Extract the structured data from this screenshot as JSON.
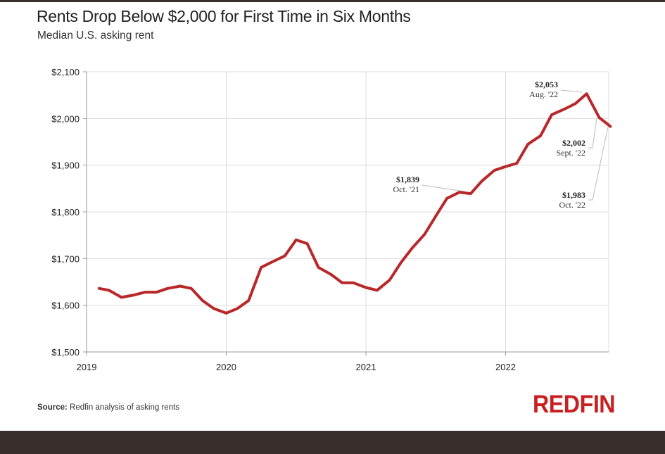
{
  "chart_data": {
    "type": "line",
    "title": "Rents Drop Below $2,000 for First Time in Six Months",
    "subtitle": "Median U.S. asking rent",
    "xlabel": "",
    "ylabel": "",
    "xlim": [
      2019,
      2022.75
    ],
    "ylim": [
      1500,
      2100
    ],
    "x_ticks": [
      {
        "value": 2019,
        "label": "2019"
      },
      {
        "value": 2020,
        "label": "2020"
      },
      {
        "value": 2021,
        "label": "2021"
      },
      {
        "value": 2022,
        "label": "2022"
      }
    ],
    "y_ticks": [
      {
        "value": 1500,
        "label": "$1,500"
      },
      {
        "value": 1600,
        "label": "$1,600"
      },
      {
        "value": 1700,
        "label": "$1,700"
      },
      {
        "value": 1800,
        "label": "$1,800"
      },
      {
        "value": 1900,
        "label": "$1,900"
      },
      {
        "value": 2000,
        "label": "$2,000"
      },
      {
        "value": 2100,
        "label": "$2,100"
      }
    ],
    "grid": true,
    "series": [
      {
        "name": "Median U.S. asking rent",
        "color": "#b8282a",
        "points": [
          [
            2019.09,
            1636
          ],
          [
            2019.16,
            1632
          ],
          [
            2019.25,
            1617
          ],
          [
            2019.34,
            1622
          ],
          [
            2019.42,
            1628
          ],
          [
            2019.5,
            1628
          ],
          [
            2019.58,
            1636
          ],
          [
            2019.67,
            1641
          ],
          [
            2019.75,
            1636
          ],
          [
            2019.83,
            1610
          ],
          [
            2019.91,
            1593
          ],
          [
            2020.0,
            1583
          ],
          [
            2020.08,
            1593
          ],
          [
            2020.16,
            1610
          ],
          [
            2020.25,
            1681
          ],
          [
            2020.33,
            1693
          ],
          [
            2020.42,
            1706
          ],
          [
            2020.5,
            1740
          ],
          [
            2020.58,
            1732
          ],
          [
            2020.66,
            1681
          ],
          [
            2020.75,
            1666
          ],
          [
            2020.83,
            1648
          ],
          [
            2020.91,
            1648
          ],
          [
            2021.0,
            1638
          ],
          [
            2021.08,
            1632
          ],
          [
            2021.17,
            1654
          ],
          [
            2021.25,
            1691
          ],
          [
            2021.33,
            1722
          ],
          [
            2021.42,
            1752
          ],
          [
            2021.5,
            1791
          ],
          [
            2021.58,
            1829
          ],
          [
            2021.67,
            1842
          ],
          [
            2021.75,
            1839
          ],
          [
            2021.83,
            1866
          ],
          [
            2021.92,
            1889
          ],
          [
            2022.0,
            1897
          ],
          [
            2022.08,
            1904
          ],
          [
            2022.16,
            1945
          ],
          [
            2022.25,
            1963
          ],
          [
            2022.33,
            2008
          ],
          [
            2022.42,
            2020
          ],
          [
            2022.5,
            2032
          ],
          [
            2022.58,
            2053
          ],
          [
            2022.67,
            2002
          ],
          [
            2022.75,
            1983
          ]
        ]
      }
    ],
    "annotations": [
      {
        "value": "$2,053",
        "label": "Aug. '22",
        "x": 2022.58,
        "y": 2053
      },
      {
        "value": "$2,002",
        "label": "Sept. '22",
        "x": 2022.67,
        "y": 2002
      },
      {
        "value": "$1,983",
        "label": "Oct. '22",
        "x": 2022.75,
        "y": 1983
      },
      {
        "value": "$1,839",
        "label": "Oct. '21",
        "x": 2021.75,
        "y": 1839
      }
    ]
  },
  "source_label": "Source:",
  "source_text": " Redfin analysis of asking rents",
  "logo": "REDFIN"
}
